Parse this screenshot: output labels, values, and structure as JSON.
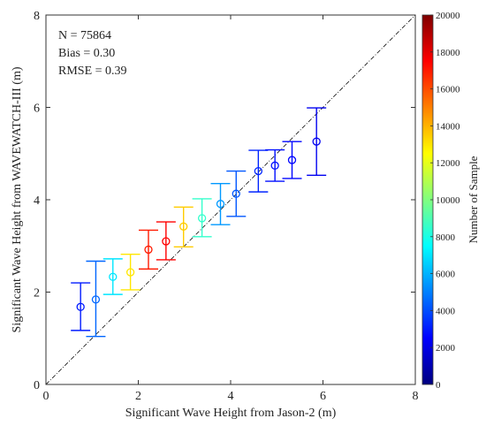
{
  "chart_data": {
    "type": "scatter",
    "title": "",
    "xlabel": "Significant Wave Height from Jason-2 (m)",
    "ylabel": "Significant Wave Height from WAVEWATCH-III (m)",
    "xlim": [
      0,
      8
    ],
    "ylim": [
      0,
      8
    ],
    "xticks": [
      "0",
      "2",
      "4",
      "6",
      "8"
    ],
    "yticks": [
      "0",
      "2",
      "4",
      "6",
      "8"
    ],
    "grid": false,
    "reference_line": "1:1 dashed diagonal",
    "stats": [
      "N = 75864",
      "Bias = 0.30",
      "RMSE = 0.39"
    ],
    "points": [
      {
        "x": 0.75,
        "y": 1.68,
        "low": 1.17,
        "high": 2.2,
        "count": 3000
      },
      {
        "x": 1.08,
        "y": 1.84,
        "low": 1.04,
        "high": 2.67,
        "count": 4500
      },
      {
        "x": 1.45,
        "y": 2.33,
        "low": 1.95,
        "high": 2.72,
        "count": 7000
      },
      {
        "x": 1.83,
        "y": 2.43,
        "low": 2.05,
        "high": 2.82,
        "count": 13000
      },
      {
        "x": 2.22,
        "y": 2.92,
        "low": 2.5,
        "high": 3.34,
        "count": 17000
      },
      {
        "x": 2.6,
        "y": 3.1,
        "low": 2.7,
        "high": 3.52,
        "count": 17500
      },
      {
        "x": 2.98,
        "y": 3.42,
        "low": 2.98,
        "high": 3.84,
        "count": 13500
      },
      {
        "x": 3.38,
        "y": 3.6,
        "low": 3.2,
        "high": 4.02,
        "count": 8500
      },
      {
        "x": 3.78,
        "y": 3.91,
        "low": 3.46,
        "high": 4.35,
        "count": 5500
      },
      {
        "x": 4.12,
        "y": 4.13,
        "low": 3.64,
        "high": 4.62,
        "count": 4200
      },
      {
        "x": 4.6,
        "y": 4.62,
        "low": 4.17,
        "high": 5.07,
        "count": 3200
      },
      {
        "x": 4.96,
        "y": 4.74,
        "low": 4.4,
        "high": 5.08,
        "count": 2800
      },
      {
        "x": 5.33,
        "y": 4.86,
        "low": 4.46,
        "high": 5.26,
        "count": 2600
      },
      {
        "x": 5.86,
        "y": 5.26,
        "low": 4.53,
        "high": 5.99,
        "count": 2200
      }
    ],
    "colorbar": {
      "label": "Number of Sample",
      "min": 0,
      "max": 20000,
      "ticks": [
        "0",
        "2000",
        "4000",
        "6000",
        "8000",
        "10000",
        "12000",
        "14000",
        "16000",
        "18000",
        "20000"
      ],
      "colors": [
        "#00007f",
        "#0000ff",
        "#0080ff",
        "#00ffff",
        "#80ff80",
        "#ffff00",
        "#ff8000",
        "#ff0000",
        "#7f0000"
      ]
    }
  }
}
